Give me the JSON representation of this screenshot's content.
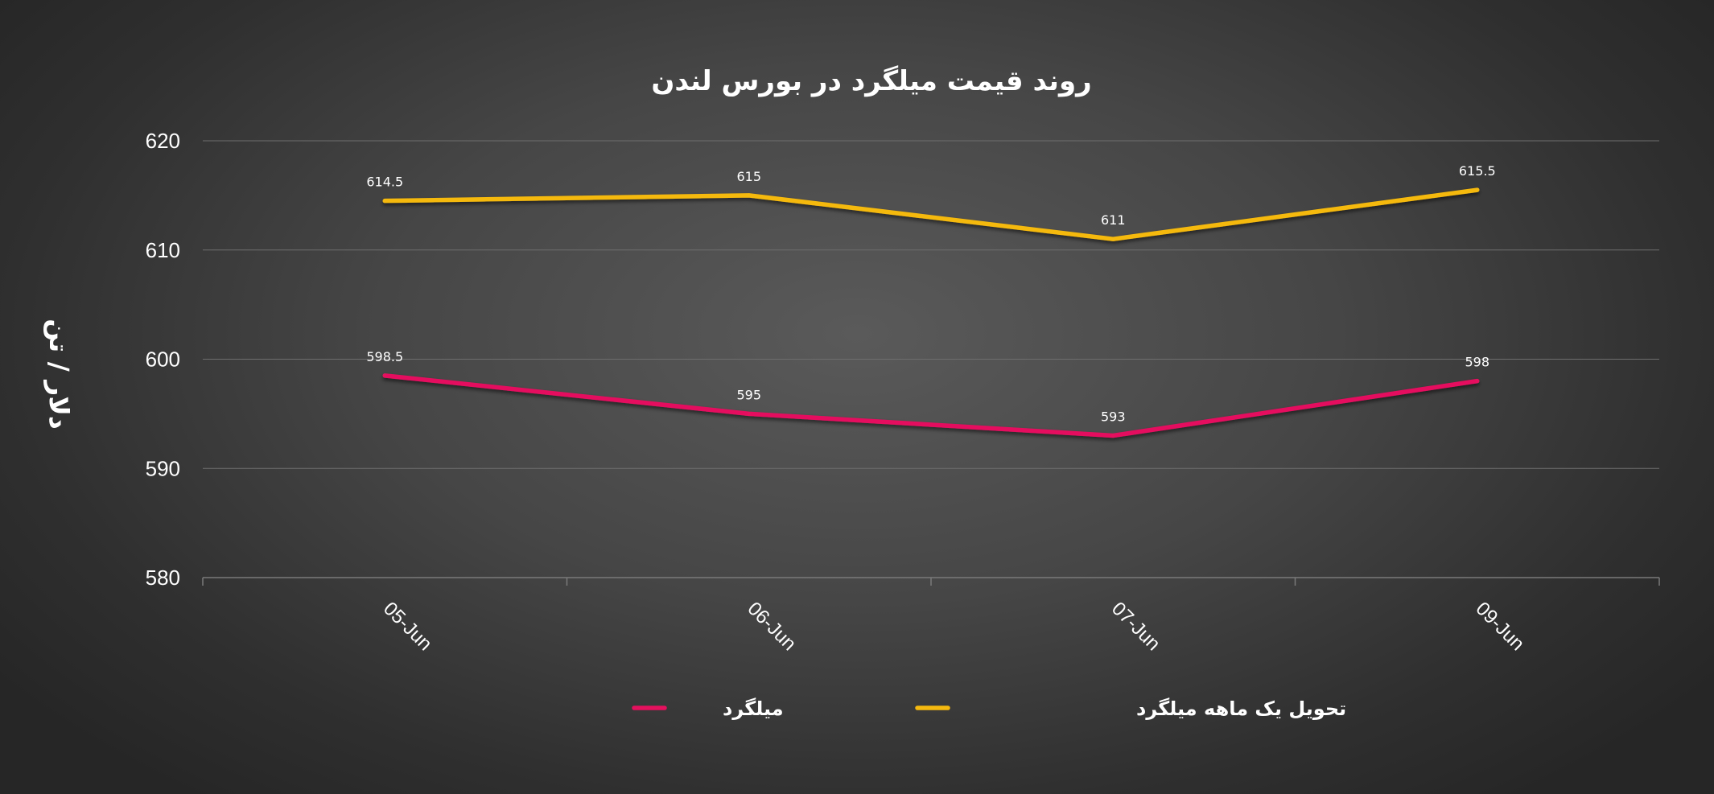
{
  "chart_data": {
    "type": "line",
    "title": "روند  قیمت میلگرد در بورس لندن",
    "ylabel": "دلار / تن",
    "xlabel": "",
    "categories": [
      "05-Jun",
      "06-Jun",
      "07-Jun",
      "09-Jun"
    ],
    "ylim": [
      580,
      620
    ],
    "yticks": [
      580,
      590,
      600,
      610,
      620
    ],
    "grid": true,
    "legend_position": "bottom",
    "series": [
      {
        "name": "میلگرد",
        "values": [
          598.5,
          595,
          593,
          598
        ],
        "labels": [
          "598.5",
          "595",
          "593",
          "598"
        ],
        "color": "#e5115e"
      },
      {
        "name": "تحویل یک ماهه میلگرد",
        "values": [
          614.5,
          615,
          611,
          615.5
        ],
        "labels": [
          "614.5",
          "615",
          "611",
          "615.5"
        ],
        "color": "#f5b90f"
      }
    ]
  }
}
